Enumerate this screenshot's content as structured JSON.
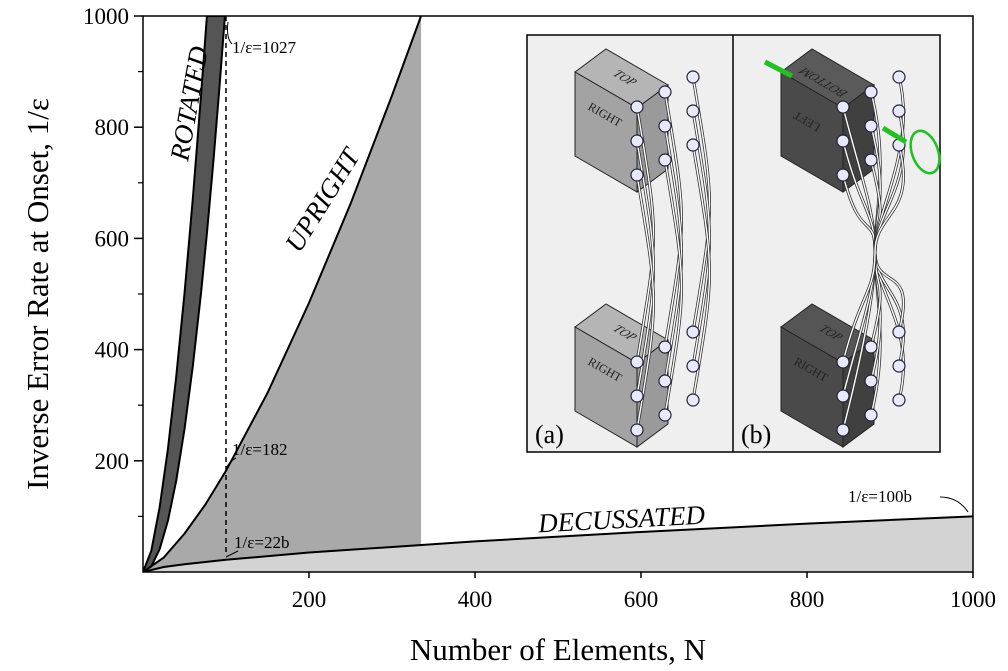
{
  "chart_data": {
    "type": "area",
    "xlabel": "Number of Elements, N",
    "ylabel": "Inverse Error Rate at Onset, 1/ε",
    "xlim": [
      0,
      1000
    ],
    "ylim": [
      0,
      1000
    ],
    "xticks": [
      200,
      400,
      600,
      800,
      1000
    ],
    "yticks": [
      200,
      400,
      600,
      800,
      1000
    ],
    "yminor_ticks": [
      100,
      300,
      500,
      700,
      900
    ],
    "vline": 100,
    "series": [
      {
        "name": "ROTATED",
        "color": "#555555",
        "x": [
          0,
          10,
          20,
          30,
          40,
          50,
          60,
          70,
          77,
          85,
          92,
          98.7
        ],
        "values": [
          0,
          38,
          116,
          221,
          351,
          501,
          671,
          859,
          1000,
          1000,
          1000,
          1000
        ],
        "lower": [
          0,
          10,
          41,
          92,
          164,
          257,
          370,
          503,
          609,
          742,
          870,
          1000
        ]
      },
      {
        "name": "UPRIGHT",
        "color": "#a9a9a9",
        "x": [
          0,
          25,
          50,
          75,
          100,
          150,
          200,
          250,
          300,
          335
        ],
        "values": [
          0,
          26,
          69,
          121,
          182,
          322,
          484,
          662,
          857,
          1000
        ]
      },
      {
        "name": "DECUSSATED",
        "color": "#d3d3d3",
        "x": [
          0,
          25,
          50,
          100,
          200,
          400,
          600,
          800,
          1000
        ],
        "values": [
          0,
          9,
          14,
          22,
          35,
          55,
          72,
          87,
          100
        ]
      }
    ],
    "annotations": [
      "1/ε=1027",
      "1/ε=182",
      "1/ε=22b",
      "1/ε=100b"
    ],
    "inset": {
      "panels": [
        {
          "label": "(a)",
          "faces": [
            "TOP",
            "RIGHT",
            "TOP",
            "RIGHT"
          ]
        },
        {
          "label": "(b)",
          "faces": [
            "BOTTOM",
            "LEFT",
            "TOP",
            "RIGHT"
          ]
        }
      ]
    }
  }
}
